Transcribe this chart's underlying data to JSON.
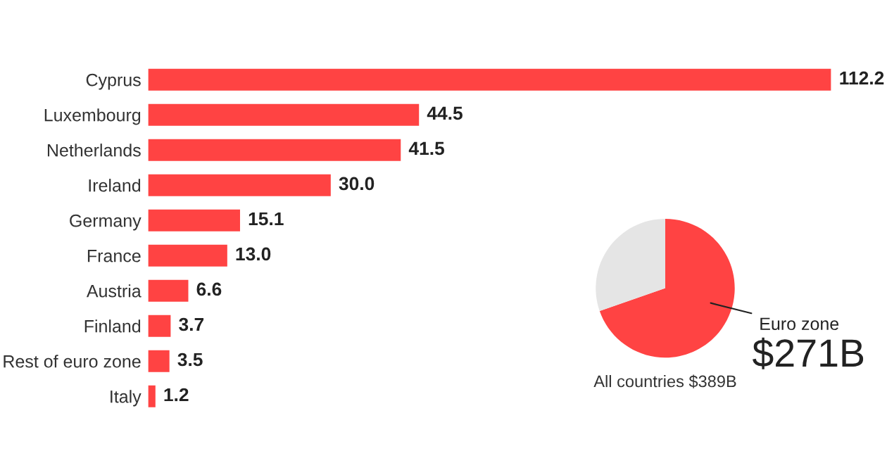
{
  "chart_data": [
    {
      "type": "bar",
      "orientation": "horizontal",
      "categories": [
        "Cyprus",
        "Luxembourg",
        "Netherlands",
        "Ireland",
        "Germany",
        "France",
        "Austria",
        "Finland",
        "Rest of euro zone",
        "Italy"
      ],
      "values": [
        112.2,
        44.5,
        41.5,
        30.0,
        15.1,
        13.0,
        6.6,
        3.7,
        3.5,
        1.2
      ],
      "value_labels": [
        "112.2",
        "44.5",
        "41.5",
        "30.0",
        "15.1",
        "13.0",
        "6.6",
        "3.7",
        "3.5",
        "1.2"
      ],
      "color": "#ff4343",
      "xlim": [
        0,
        112.2
      ],
      "grid": false,
      "legend": false
    },
    {
      "type": "pie",
      "categories": [
        "Euro zone",
        null
      ],
      "values": [
        271,
        118
      ],
      "colors": [
        "#ff4343",
        "#e5e5e5"
      ],
      "value_labels": [
        "$271B",
        null
      ],
      "annotations": [
        "All countries $389B"
      ],
      "legend": false
    }
  ]
}
